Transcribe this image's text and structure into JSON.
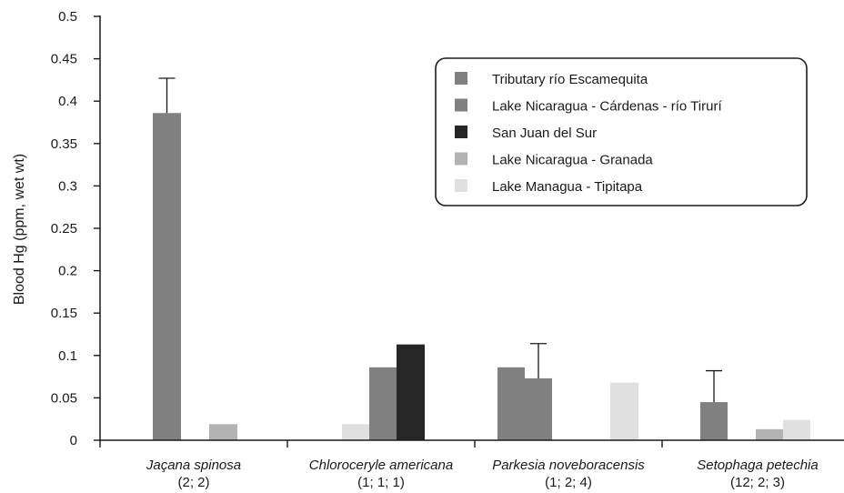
{
  "chart_data": {
    "type": "bar",
    "ylabel": "Blood Hg (ppm, wet wt)",
    "ylim": [
      0,
      0.5
    ],
    "yticks": [
      0,
      0.05,
      0.1,
      0.15,
      0.2,
      0.25,
      0.3,
      0.35,
      0.4,
      0.45,
      0.5
    ],
    "ytick_labels": [
      "0",
      "0.05",
      "0.1",
      "0.15",
      "0.2",
      "0.25",
      "0.3",
      "0.35",
      "0.4",
      "0.45",
      "0.5"
    ],
    "legend_position": "top-right",
    "grid": false,
    "categories": [
      {
        "name": "Jaçana spinosa",
        "n": "(2; 2)"
      },
      {
        "name": "Chloroceryle americana",
        "n": "(1; 1; 1)"
      },
      {
        "name": "Parkesia noveboracensis",
        "n": "(1; 2; 4)"
      },
      {
        "name": "Setophaga petechia",
        "n": "(12; 2; 3)"
      }
    ],
    "series": [
      {
        "name": "Tributary río Escamequita",
        "color": "#808080",
        "values": [
          null,
          null,
          0.086,
          0.045
        ],
        "errors": [
          null,
          null,
          null,
          0.037
        ]
      },
      {
        "name": "Lake Nicaragua - Cárdenas - río Tirurí",
        "color": "#808080",
        "values": [
          0.386,
          0.086,
          0.073,
          null
        ],
        "errors": [
          0.041,
          null,
          0.041,
          null
        ]
      },
      {
        "name": "San Juan del Sur",
        "color": "#262626",
        "values": [
          null,
          0.113,
          null,
          null
        ],
        "errors": [
          null,
          null,
          null,
          null
        ]
      },
      {
        "name": "Lake Nicaragua - Granada",
        "color": "#b3b3b3",
        "values": [
          0.019,
          null,
          null,
          0.013
        ],
        "errors": [
          null,
          null,
          null,
          null
        ]
      },
      {
        "name": "Lake Managua - Tipitapa",
        "color": "#e0e0e0",
        "values": [
          null,
          0.019,
          0.068,
          0.024
        ],
        "errors": [
          null,
          null,
          null,
          null
        ]
      }
    ]
  }
}
